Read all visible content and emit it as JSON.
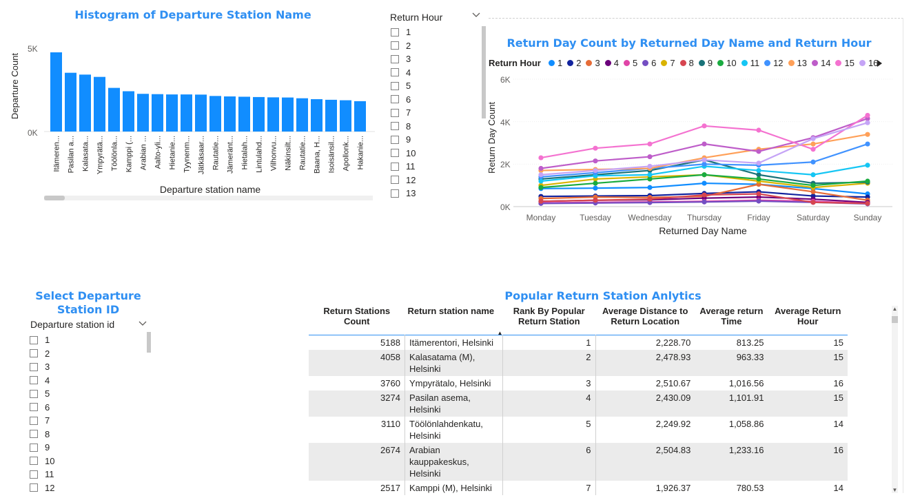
{
  "histogram": {
    "title": "Histogram of Departure Station Name",
    "ylabel": "Departure Count",
    "xlabel": "Departure station name",
    "yticks": [
      "5K",
      "0K"
    ]
  },
  "chart_data": [
    {
      "type": "bar",
      "title": "Histogram of Departure Station Name",
      "xlabel": "Departure station name",
      "ylabel": "Departure Count",
      "ylim": [
        0,
        6000
      ],
      "categories": [
        "Itämeren...",
        "Pasilan a...",
        "Kalasata...",
        "Ympyrätä...",
        "Töölönla...",
        "Kamppi (...",
        "Arabian ...",
        "Aalto-yli...",
        "Hietanie...",
        "Tyynenm...",
        "Jätkäsaar...",
        "Rautatie...",
        "Jämeränt...",
        "Hietalah...",
        "Lintulahd...",
        "Vilhonvu...",
        "Näkinsilt...",
        "Rautatie...",
        "Baana, H...",
        "Isoisänsil...",
        "Apollonk...",
        "Hakanie..."
      ],
      "values": [
        5188,
        3850,
        3730,
        3580,
        2860,
        2640,
        2470,
        2450,
        2430,
        2430,
        2420,
        2330,
        2300,
        2280,
        2260,
        2240,
        2230,
        2180,
        2120,
        2080,
        2050,
        1990
      ]
    },
    {
      "type": "line",
      "title": "Return Day Count by Returned Day Name and Return Hour",
      "xlabel": "Returned Day Name",
      "ylabel": "Return Day Count",
      "ylim": [
        0,
        6000
      ],
      "x": [
        "Monday",
        "Tuesday",
        "Wednesday",
        "Thursday",
        "Friday",
        "Saturday",
        "Sunday"
      ],
      "legend_title": "Return Hour",
      "series": [
        {
          "name": "1",
          "color": "#118dff",
          "values": [
            850,
            870,
            900,
            1100,
            1050,
            850,
            600
          ]
        },
        {
          "name": "2",
          "color": "#12239e",
          "values": [
            480,
            500,
            520,
            620,
            700,
            500,
            450
          ]
        },
        {
          "name": "3",
          "color": "#e66c37",
          "values": [
            380,
            450,
            430,
            480,
            1050,
            700,
            300
          ]
        },
        {
          "name": "4",
          "color": "#6b007b",
          "values": [
            250,
            300,
            320,
            400,
            450,
            350,
            200
          ]
        },
        {
          "name": "5",
          "color": "#e044a7",
          "values": [
            180,
            200,
            220,
            250,
            300,
            250,
            150
          ]
        },
        {
          "name": "6",
          "color": "#744ec2",
          "values": [
            150,
            170,
            190,
            220,
            260,
            200,
            130
          ]
        },
        {
          "name": "7",
          "color": "#d9b300",
          "values": [
            1000,
            1300,
            1400,
            1500,
            1200,
            900,
            1100
          ]
        },
        {
          "name": "8",
          "color": "#d64550",
          "values": [
            250,
            300,
            350,
            550,
            600,
            200,
            150
          ]
        },
        {
          "name": "9",
          "color": "#197278",
          "values": [
            1300,
            1500,
            1700,
            2200,
            1500,
            1100,
            1150
          ]
        },
        {
          "name": "10",
          "color": "#1aab40",
          "values": [
            900,
            1100,
            1300,
            1500,
            1300,
            1000,
            1200
          ]
        },
        {
          "name": "11",
          "color": "#15c6f4",
          "values": [
            1200,
            1450,
            1500,
            1900,
            1700,
            1500,
            1950
          ]
        },
        {
          "name": "12",
          "color": "#4092ff",
          "values": [
            1400,
            1600,
            1800,
            2000,
            1950,
            2100,
            2950
          ]
        },
        {
          "name": "13",
          "color": "#ffa058",
          "values": [
            1700,
            1750,
            1800,
            2300,
            2700,
            2950,
            3400
          ]
        },
        {
          "name": "14",
          "color": "#be5dc9",
          "values": [
            1800,
            2150,
            2350,
            2950,
            2600,
            3250,
            4150
          ]
        },
        {
          "name": "15",
          "color": "#f472d0",
          "values": [
            2300,
            2750,
            2950,
            3800,
            3600,
            2700,
            4300
          ]
        },
        {
          "name": "16",
          "color": "#c5a4f6",
          "values": [
            1500,
            1700,
            1900,
            2200,
            2050,
            3200,
            3950
          ]
        }
      ]
    }
  ],
  "return_hour_slicer": {
    "header": "Return Hour",
    "items": [
      "1",
      "2",
      "3",
      "4",
      "5",
      "6",
      "7",
      "8",
      "9",
      "10",
      "11",
      "12",
      "13"
    ]
  },
  "linechart": {
    "title": "Return Day Count by Returned Day Name and Return Hour",
    "legend_title": "Return Hour",
    "ylabel": "Return Day Count",
    "xlabel": "Returned Day Name",
    "yticks": [
      "6K",
      "4K",
      "2K",
      "0K"
    ]
  },
  "departure_slicer": {
    "title": "Select Departure Station ID",
    "header": "Departure station id",
    "items": [
      "1",
      "2",
      "3",
      "4",
      "5",
      "6",
      "7",
      "8",
      "9",
      "10",
      "11",
      "12"
    ]
  },
  "table": {
    "title": "Popular Return Station Anlytics",
    "columns": [
      "Return Stations Count",
      "Return station name",
      "Rank By Popular Return Station",
      "Average Distance to Return Location",
      "Average return Time",
      "Average Return Hour"
    ],
    "rows": [
      [
        "5188",
        "Itämerentori, Helsinki",
        "1",
        "2,228.70",
        "813.25",
        "15"
      ],
      [
        "4058",
        "Kalasatama (M), Helsinki",
        "2",
        "2,478.93",
        "963.33",
        "15"
      ],
      [
        "3760",
        "Ympyrätalo, Helsinki",
        "3",
        "2,510.67",
        "1,016.56",
        "16"
      ],
      [
        "3274",
        "Pasilan asema, Helsinki",
        "4",
        "2,430.09",
        "1,101.91",
        "15"
      ],
      [
        "3110",
        "Töölönlahdenkatu, Helsinki",
        "5",
        "2,249.92",
        "1,058.86",
        "14"
      ],
      [
        "2674",
        "Arabian kauppakeskus, Helsinki",
        "6",
        "2,504.83",
        "1,233.16",
        "16"
      ],
      [
        "2517",
        "Kamppi (M), Helsinki",
        "7",
        "1,926.37",
        "780.53",
        "14"
      ]
    ]
  }
}
